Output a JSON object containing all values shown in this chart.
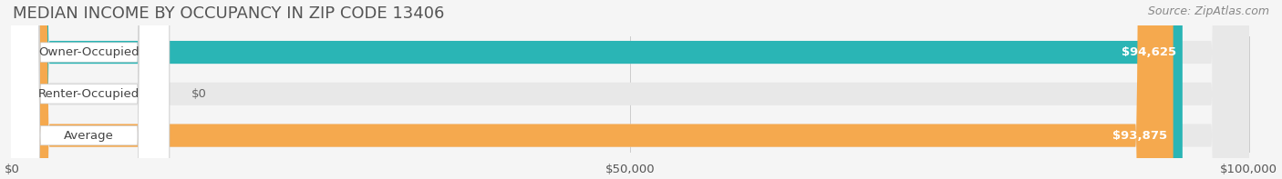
{
  "title": "MEDIAN INCOME BY OCCUPANCY IN ZIP CODE 13406",
  "source": "Source: ZipAtlas.com",
  "categories": [
    "Owner-Occupied",
    "Renter-Occupied",
    "Average"
  ],
  "values": [
    94625,
    0,
    93875
  ],
  "bar_colors": [
    "#2ab5b5",
    "#c9a8d4",
    "#f5a94e"
  ],
  "bar_labels": [
    "$94,625",
    "$0",
    "$93,875"
  ],
  "xlim": [
    0,
    100000
  ],
  "xticks": [
    0,
    50000,
    100000
  ],
  "xticklabels": [
    "$0",
    "$50,000",
    "$100,000"
  ],
  "background_color": "#f5f5f5",
  "bar_bg_color": "#e8e8e8",
  "title_fontsize": 13,
  "label_fontsize": 9.5,
  "value_fontsize": 9.5,
  "source_fontsize": 9,
  "figsize": [
    14.06,
    1.97
  ],
  "dpi": 100
}
